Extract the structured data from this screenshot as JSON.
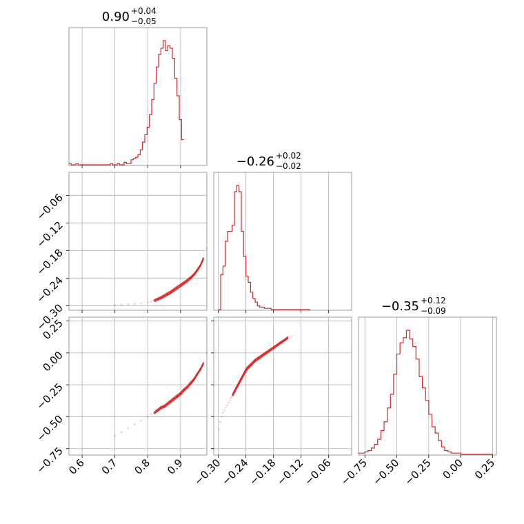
{
  "chart_data": {
    "type": "corner",
    "color": "#d62728",
    "grid": true,
    "parameters": [
      {
        "range": [
          0.56,
          0.98
        ],
        "ticks": [
          0.6,
          0.7,
          0.8,
          0.9
        ],
        "tick_labels": [
          "0.6",
          "0.7",
          "0.8",
          "0.9"
        ],
        "title_value": "0.90",
        "title_plus": "+0.04",
        "title_minus": "−0.05"
      },
      {
        "range": [
          -0.31,
          -0.01
        ],
        "ticks": [
          -0.3,
          -0.24,
          -0.18,
          -0.12,
          -0.06
        ],
        "tick_labels": [
          "−0.30",
          "−0.24",
          "−0.18",
          "−0.12",
          "−0.06"
        ],
        "title_value": "−0.26",
        "title_plus": "+0.02",
        "title_minus": "−0.02"
      },
      {
        "range": [
          -0.8,
          0.28
        ],
        "ticks": [
          -0.75,
          -0.5,
          -0.25,
          0.0,
          0.25
        ],
        "tick_labels": [
          "−0.75",
          "−0.50",
          "−0.25",
          "0.00",
          "0.25"
        ],
        "title_value": "−0.35",
        "title_plus": "+0.12",
        "title_minus": "−0.09"
      }
    ],
    "histograms": [
      {
        "param": 0,
        "bin_edges_start": 0.56,
        "bin_width": 0.007,
        "counts": [
          1,
          0,
          0,
          1,
          0,
          0,
          0,
          0,
          0,
          0,
          0,
          0,
          0,
          0,
          0,
          0,
          0,
          0,
          1,
          0,
          0,
          1,
          0,
          0,
          2,
          1,
          1,
          4,
          5,
          6,
          8,
          12,
          18,
          24,
          30,
          40,
          52,
          65,
          78,
          88,
          93,
          99,
          91,
          95,
          93,
          85,
          69,
          55,
          36,
          20
        ]
      },
      {
        "param": 1,
        "bin_edges_start": -0.3,
        "bin_width": 0.005,
        "counts": [
          0,
          28,
          35,
          55,
          63,
          63,
          68,
          95,
          100,
          95,
          63,
          43,
          27,
          22,
          14,
          9,
          6,
          3,
          2,
          2,
          1,
          1,
          1,
          0,
          0,
          0,
          0,
          0,
          0,
          0,
          0,
          0,
          0,
          0,
          0,
          0,
          0,
          0,
          0,
          0
        ]
      },
      {
        "param": 2,
        "bin_edges_start": -0.8,
        "bin_width": 0.025,
        "counts": [
          1,
          1,
          2,
          3,
          5,
          8,
          12,
          19,
          26,
          37,
          48,
          64,
          80,
          89,
          93,
          99,
          92,
          86,
          76,
          62,
          53,
          43,
          32,
          22,
          17,
          11,
          6,
          3,
          2,
          1,
          1,
          1,
          0,
          0,
          0,
          0,
          0,
          0,
          0,
          0,
          0,
          0
        ]
      }
    ],
    "scatter_pairs": [
      {
        "x_param": 0,
        "y_param": 1,
        "x": [
          0.7,
          0.72,
          0.74,
          0.76,
          0.78,
          0.8,
          0.81,
          0.82,
          0.83,
          0.84,
          0.85,
          0.86,
          0.87,
          0.88,
          0.89,
          0.9,
          0.91,
          0.92,
          0.93,
          0.94,
          0.95,
          0.96,
          0.97,
          0.98
        ],
        "y": [
          -0.299,
          -0.298,
          -0.297,
          -0.296,
          -0.295,
          -0.293,
          -0.291,
          -0.289,
          -0.286,
          -0.283,
          -0.279,
          -0.275,
          -0.271,
          -0.266,
          -0.261,
          -0.256,
          -0.251,
          -0.246,
          -0.24,
          -0.233,
          -0.224,
          -0.213,
          -0.197,
          -0.175
        ]
      },
      {
        "x_param": 1,
        "y_param": 2,
        "x": [
          -0.299,
          -0.296,
          -0.293,
          -0.29,
          -0.287,
          -0.284,
          -0.281,
          -0.278,
          -0.275,
          -0.272,
          -0.269,
          -0.266,
          -0.263,
          -0.26,
          -0.257,
          -0.254,
          -0.251,
          -0.248,
          -0.245,
          -0.242,
          -0.239,
          -0.234,
          -0.228,
          -0.22,
          -0.212,
          -0.204,
          -0.196,
          -0.188,
          -0.18,
          -0.172,
          -0.164,
          -0.156,
          -0.148,
          -0.14
        ],
        "y": [
          -0.6,
          -0.54,
          -0.5,
          -0.47,
          -0.45,
          -0.43,
          -0.41,
          -0.39,
          -0.37,
          -0.35,
          -0.33,
          -0.31,
          -0.29,
          -0.27,
          -0.25,
          -0.23,
          -0.21,
          -0.19,
          -0.17,
          -0.15,
          -0.13,
          -0.11,
          -0.09,
          -0.06,
          -0.04,
          -0.02,
          0.0,
          0.02,
          0.04,
          0.06,
          0.08,
          0.1,
          0.12,
          0.13
        ]
      },
      {
        "x_param": 0,
        "y_param": 2,
        "x": [
          0.7,
          0.72,
          0.74,
          0.76,
          0.78,
          0.8,
          0.81,
          0.82,
          0.83,
          0.84,
          0.85,
          0.86,
          0.87,
          0.88,
          0.89,
          0.9,
          0.91,
          0.92,
          0.93,
          0.94,
          0.95,
          0.96,
          0.97,
          0.98
        ],
        "y": [
          -0.65,
          -0.62,
          -0.59,
          -0.56,
          -0.53,
          -0.5,
          -0.48,
          -0.47,
          -0.45,
          -0.43,
          -0.42,
          -0.4,
          -0.38,
          -0.36,
          -0.34,
          -0.32,
          -0.29,
          -0.27,
          -0.24,
          -0.21,
          -0.17,
          -0.13,
          -0.08,
          0.0
        ]
      }
    ]
  }
}
